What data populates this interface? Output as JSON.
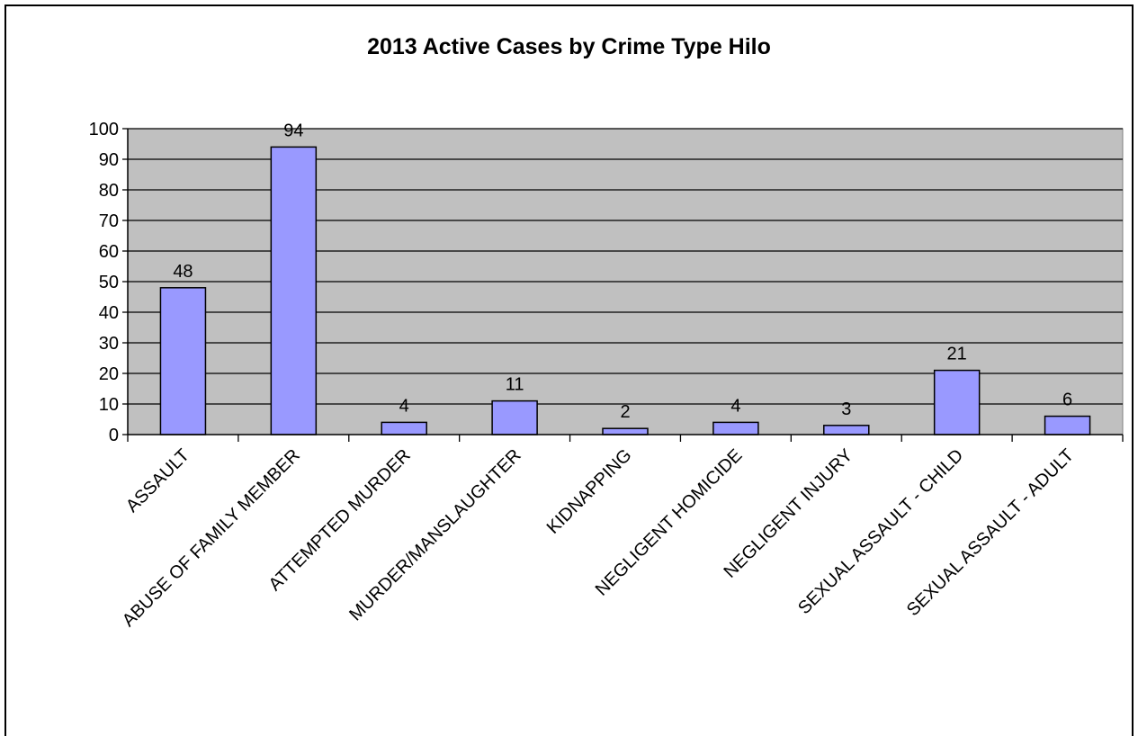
{
  "chart_data": {
    "type": "bar",
    "title": "2013 Active Cases by Crime Type Hilo",
    "xlabel": "",
    "ylabel": "",
    "categories": [
      "ASSAULT",
      "ABUSE OF FAMILY MEMBER",
      "ATTEMPTED MURDER",
      "MURDER/MANSLAUGHTER",
      "KIDNAPPING",
      "NEGLIGENT HOMICIDE",
      "NEGLIGENT INJURY",
      "SEXUAL ASSAULT - CHILD",
      "SEXUAL ASSAULT - ADULT"
    ],
    "values": [
      48,
      94,
      4,
      11,
      2,
      4,
      3,
      21,
      6
    ],
    "ylim": [
      0,
      100
    ],
    "yticks": [
      0,
      10,
      20,
      30,
      40,
      50,
      60,
      70,
      80,
      90,
      100
    ],
    "grid": true,
    "legend": "none",
    "colors": {
      "bar_fill": "#9999ff",
      "bar_stroke": "#000000",
      "plot_background": "#c0c0c0",
      "gridline": "#000000"
    }
  }
}
